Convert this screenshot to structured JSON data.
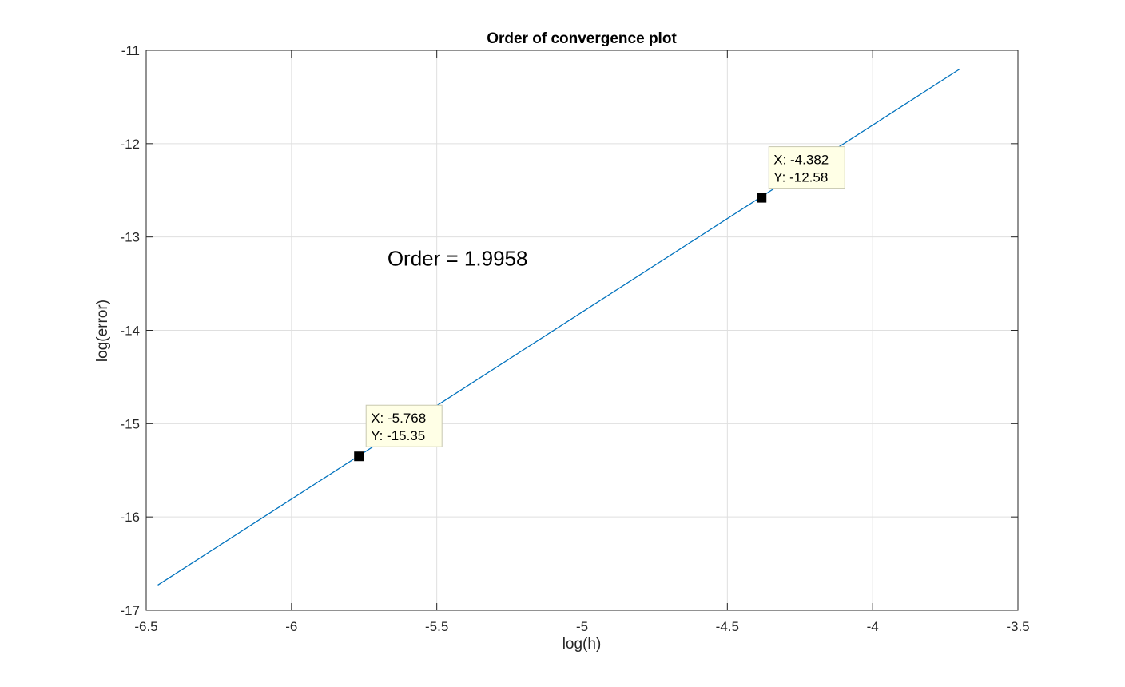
{
  "chart_data": {
    "type": "line",
    "title": "Order of convergence plot",
    "xlabel": "log(h)",
    "ylabel": "log(error)",
    "xlim": [
      -6.5,
      -3.5
    ],
    "ylim": [
      -17,
      -11
    ],
    "xticks": [
      -6.5,
      -6,
      -5.5,
      -5,
      -4.5,
      -4,
      -3.5
    ],
    "yticks": [
      -17,
      -16,
      -15,
      -14,
      -13,
      -12,
      -11
    ],
    "xtick_labels": [
      "-6.5",
      "-6",
      "-5.5",
      "-5",
      "-4.5",
      "-4",
      "-3.5"
    ],
    "ytick_labels": [
      "-17",
      "-16",
      "-15",
      "-14",
      "-13",
      "-12",
      "-11"
    ],
    "grid": true,
    "series": [
      {
        "color": "#0072bd",
        "x": [
          -6.46,
          -3.7
        ],
        "y": [
          -16.73,
          -11.2
        ]
      }
    ],
    "datatips": [
      {
        "x": -5.768,
        "y": -15.35,
        "x_text": "X: -5.768",
        "y_text": "Y: -15.35"
      },
      {
        "x": -4.382,
        "y": -12.58,
        "x_text": "X: -4.382",
        "y_text": "Y: -12.58"
      }
    ],
    "annotation": {
      "text": "Order = 1.9958",
      "x": -5.67,
      "y": -13.23
    }
  }
}
